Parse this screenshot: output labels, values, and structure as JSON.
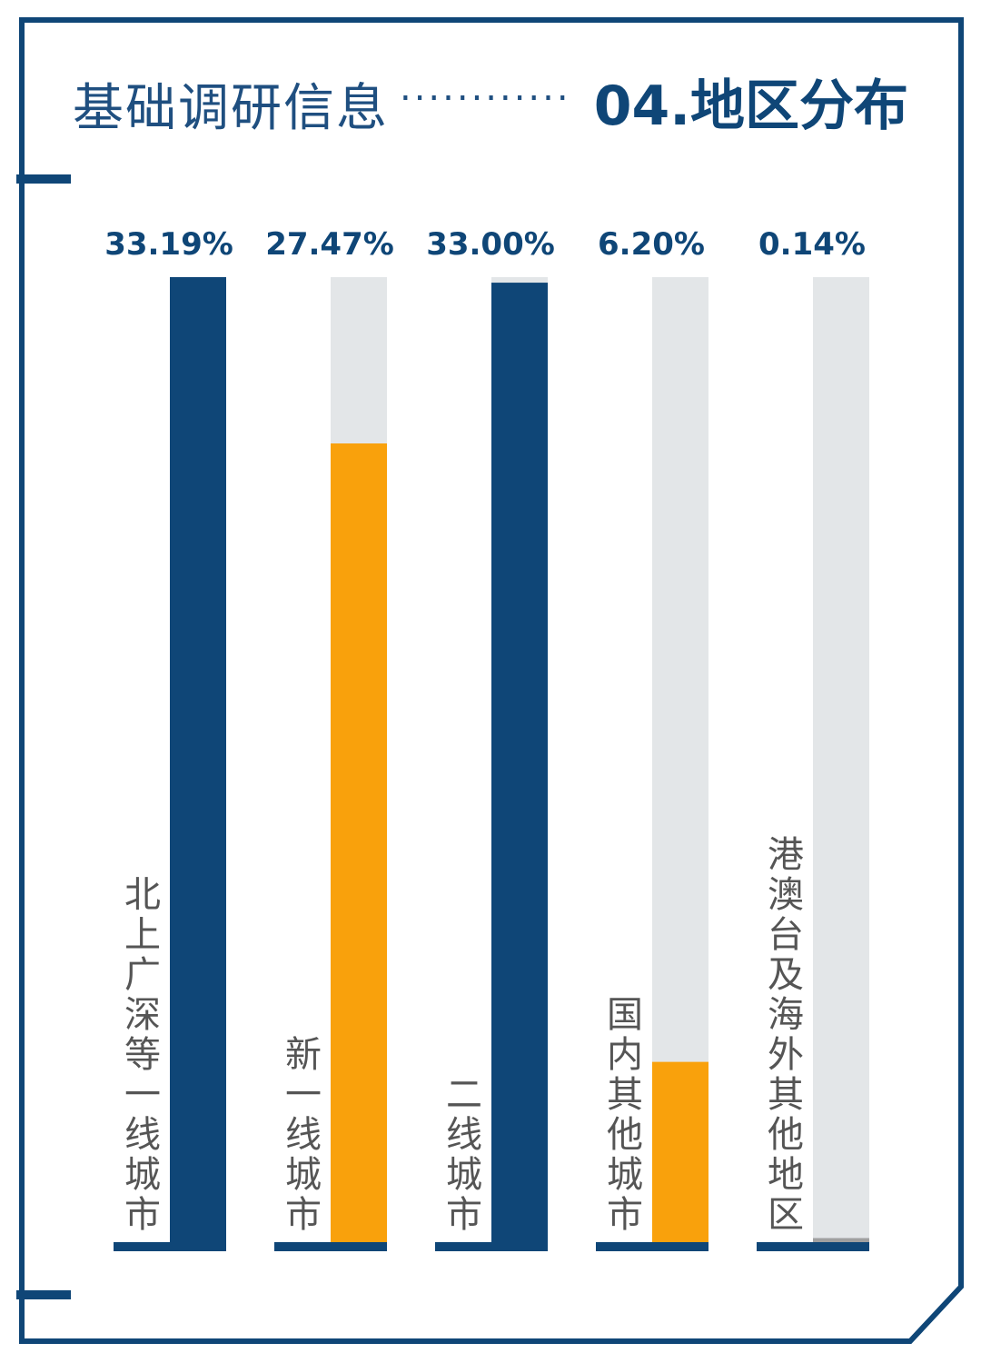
{
  "title": {
    "left": "基础调研信息",
    "dots": "............",
    "right": "04.地区分布"
  },
  "colors": {
    "frame": "#0f4677",
    "track": "#e3e6e8",
    "navy": "#0f4677",
    "orange": "#f9a10c",
    "gray": "#a0a0a0"
  },
  "chart_data": {
    "type": "bar",
    "orientation": "vertical",
    "title": "04.地区分布",
    "categories": [
      "北上广深等一线城市",
      "新一线城市",
      "二线城市",
      "国内其他城市",
      "港澳台及海外其他地区"
    ],
    "values": [
      33.19,
      27.47,
      33.0,
      6.2,
      0.14
    ],
    "value_labels": [
      "33.19%",
      "27.47%",
      "33.00%",
      "6.20%",
      "0.14%"
    ],
    "bar_colors": [
      "#0f4677",
      "#f9a10c",
      "#0f4677",
      "#f9a10c",
      "#a0a0a0"
    ],
    "ylim": [
      0,
      33.19
    ],
    "grid": false,
    "legend": "none"
  }
}
